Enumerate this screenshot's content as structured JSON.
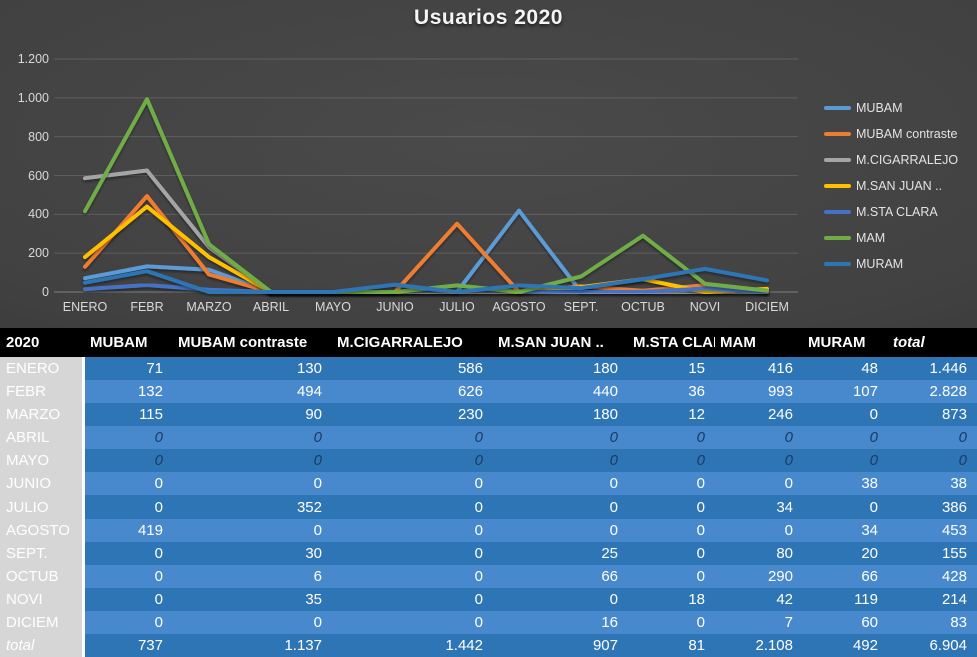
{
  "chart_data": {
    "type": "line",
    "title": "Usuarios 2020",
    "categories": [
      "ENERO",
      "FEBR",
      "MARZO",
      "ABRIL",
      "MAYO",
      "JUNIO",
      "JULIO",
      "AGOSTO",
      "SEPT.",
      "OCTUB",
      "NOVI",
      "DICIEM"
    ],
    "series": [
      {
        "name": "MUBAM",
        "color": "#5B9BD5",
        "values": [
          71,
          132,
          115,
          0,
          0,
          0,
          0,
          419,
          0,
          0,
          0,
          0
        ]
      },
      {
        "name": "MUBAM contraste",
        "color": "#ED7D31",
        "values": [
          130,
          494,
          90,
          0,
          0,
          0,
          352,
          0,
          30,
          6,
          35,
          0
        ]
      },
      {
        "name": "M.CIGARRALEJO",
        "color": "#A5A5A5",
        "values": [
          586,
          626,
          230,
          0,
          0,
          0,
          0,
          0,
          0,
          0,
          0,
          0
        ]
      },
      {
        "name": "M.SAN JUAN ..",
        "color": "#FFC000",
        "values": [
          180,
          440,
          180,
          0,
          0,
          0,
          0,
          0,
          25,
          66,
          0,
          16
        ]
      },
      {
        "name": "M.STA CLARA",
        "color": "#4472C4",
        "values": [
          15,
          36,
          12,
          0,
          0,
          0,
          0,
          0,
          0,
          0,
          18,
          0
        ]
      },
      {
        "name": "MAM",
        "color": "#70AD47",
        "values": [
          416,
          993,
          246,
          0,
          0,
          0,
          34,
          0,
          80,
          290,
          42,
          7
        ]
      },
      {
        "name": "MURAM",
        "color": "#2E75B6",
        "values": [
          48,
          107,
          0,
          0,
          0,
          38,
          0,
          34,
          20,
          66,
          119,
          60
        ]
      }
    ],
    "ylim": [
      0,
      1200
    ],
    "ytick_step": 200,
    "ytick_labels": [
      "0",
      "200",
      "400",
      "600",
      "800",
      "1.000",
      "1.200"
    ],
    "grid": true,
    "legend_position": "right"
  },
  "table": {
    "year_header": "2020",
    "columns": [
      "MUBAM",
      "MUBAM contraste",
      "M.CIGARRALEJO",
      "M.SAN JUAN ..",
      "M.STA CLARA",
      "MAM",
      "MURAM",
      "total"
    ],
    "rows": [
      {
        "label": "ENERO",
        "values": [
          "71",
          "130",
          "586",
          "180",
          "15",
          "416",
          "48",
          "1.446"
        ]
      },
      {
        "label": "FEBR",
        "values": [
          "132",
          "494",
          "626",
          "440",
          "36",
          "993",
          "107",
          "2.828"
        ]
      },
      {
        "label": "MARZO",
        "values": [
          "115",
          "90",
          "230",
          "180",
          "12",
          "246",
          "0",
          "873"
        ]
      },
      {
        "label": "ABRIL",
        "values": [
          "0",
          "0",
          "0",
          "0",
          "0",
          "0",
          "0",
          "0"
        ],
        "zero_style": true
      },
      {
        "label": "MAYO",
        "values": [
          "0",
          "0",
          "0",
          "0",
          "0",
          "0",
          "0",
          "0"
        ],
        "zero_style": true
      },
      {
        "label": "JUNIO",
        "values": [
          "0",
          "0",
          "0",
          "0",
          "0",
          "0",
          "38",
          "38"
        ]
      },
      {
        "label": "JULIO",
        "values": [
          "0",
          "352",
          "0",
          "0",
          "0",
          "34",
          "0",
          "386"
        ]
      },
      {
        "label": "AGOSTO",
        "values": [
          "419",
          "0",
          "0",
          "0",
          "0",
          "0",
          "34",
          "453"
        ]
      },
      {
        "label": "SEPT.",
        "values": [
          "0",
          "30",
          "0",
          "25",
          "0",
          "80",
          "20",
          "155"
        ]
      },
      {
        "label": "OCTUB",
        "values": [
          "0",
          "6",
          "0",
          "66",
          "0",
          "290",
          "66",
          "428"
        ]
      },
      {
        "label": "NOVI",
        "values": [
          "0",
          "35",
          "0",
          "0",
          "18",
          "42",
          "119",
          "214"
        ]
      },
      {
        "label": "DICIEM",
        "values": [
          "0",
          "0",
          "0",
          "16",
          "0",
          "7",
          "60",
          "83"
        ]
      },
      {
        "label": "total",
        "values": [
          "737",
          "1.137",
          "1.442",
          "907",
          "81",
          "2.108",
          "492",
          "6.904"
        ],
        "is_total": true
      }
    ]
  },
  "colors": {
    "row_dark": "#2E75B6",
    "row_light": "#4889CD",
    "label_col": "#D6D6D6",
    "header_bg": "#000000",
    "zero_text": "#1B3A66",
    "axis_text": "#D9D9D9"
  }
}
